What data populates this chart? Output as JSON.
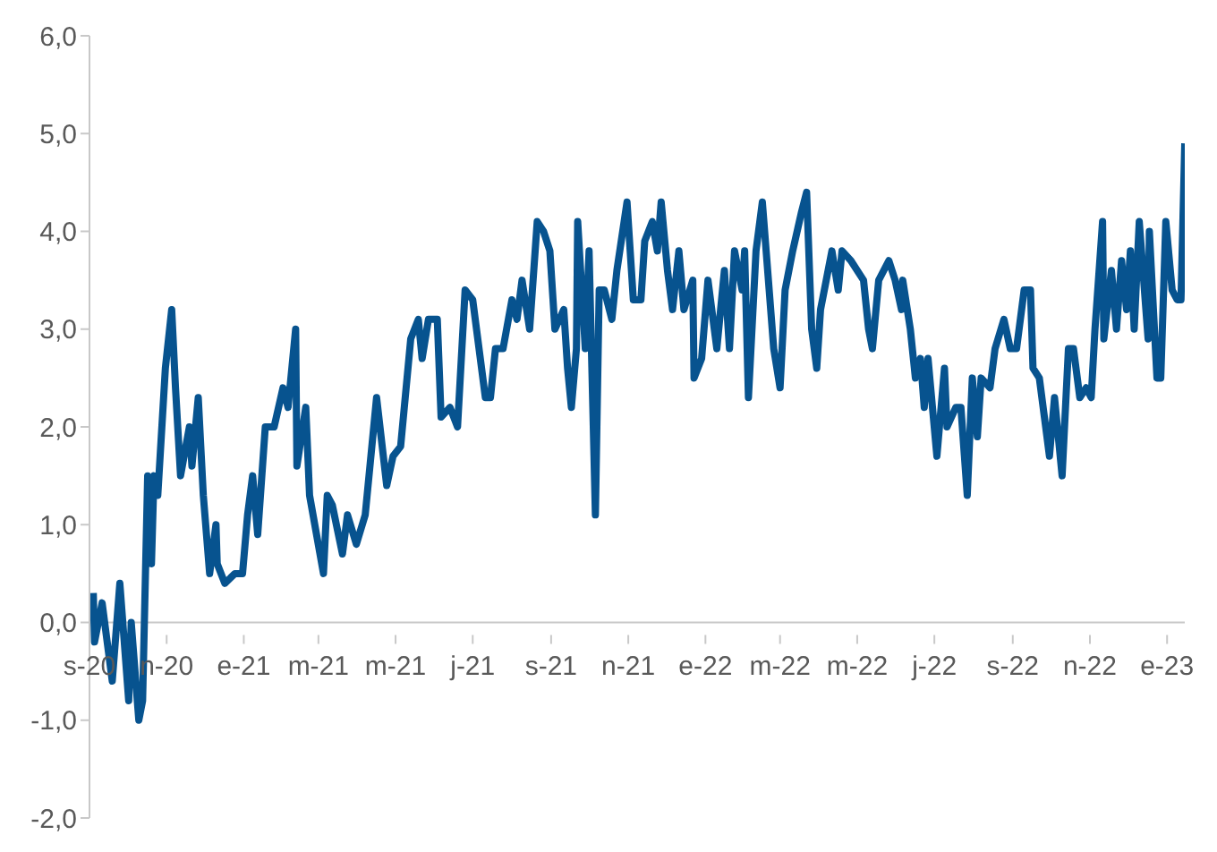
{
  "chart_data": {
    "type": "line",
    "marker": "none",
    "line_style": "solid",
    "xlim": [
      "2020-09-01",
      "2023-01-15"
    ],
    "xticks": [
      {
        "value": "2020-09-01",
        "label": "s-20"
      },
      {
        "value": "2020-11-01",
        "label": "n-20"
      },
      {
        "value": "2021-01-01",
        "label": "e-21"
      },
      {
        "value": "2021-03-01",
        "label": "m-21"
      },
      {
        "value": "2021-05-01",
        "label": "m-21"
      },
      {
        "value": "2021-07-01",
        "label": "j-21"
      },
      {
        "value": "2021-09-01",
        "label": "s-21"
      },
      {
        "value": "2021-11-01",
        "label": "n-21"
      },
      {
        "value": "2022-01-01",
        "label": "e-22"
      },
      {
        "value": "2022-03-01",
        "label": "m-22"
      },
      {
        "value": "2022-05-01",
        "label": "m-22"
      },
      {
        "value": "2022-07-01",
        "label": "j-22"
      },
      {
        "value": "2022-09-01",
        "label": "s-22"
      },
      {
        "value": "2022-11-01",
        "label": "n-22"
      },
      {
        "value": "2023-01-01",
        "label": "e-23"
      }
    ],
    "ylim": [
      -2,
      6
    ],
    "yticks": [
      {
        "value": -2,
        "label": "-2,0"
      },
      {
        "value": -1,
        "label": "-1,0"
      },
      {
        "value": 0,
        "label": "0,0"
      },
      {
        "value": 1,
        "label": "1,0"
      },
      {
        "value": 2,
        "label": "2,0"
      },
      {
        "value": 3,
        "label": "3,0"
      },
      {
        "value": 4,
        "label": "4,0"
      },
      {
        "value": 5,
        "label": "5,0"
      },
      {
        "value": 6,
        "label": "6,0"
      }
    ],
    "x": [
      "2020-09-04",
      "2020-09-05",
      "2020-09-11",
      "2020-09-19",
      "2020-09-25",
      "2020-10-02",
      "2020-10-04",
      "2020-10-10",
      "2020-10-13",
      "2020-10-17",
      "2020-10-20",
      "2020-10-22",
      "2020-10-25",
      "2020-10-31",
      "2020-11-05",
      "2020-11-08",
      "2020-11-12",
      "2020-11-19",
      "2020-11-21",
      "2020-11-26",
      "2020-11-30",
      "2020-12-05",
      "2020-12-10",
      "2020-12-11",
      "2020-12-17",
      "2020-12-25",
      "2020-12-31",
      "2021-01-04",
      "2021-01-08",
      "2021-01-12",
      "2021-01-18",
      "2021-01-25",
      "2021-02-01",
      "2021-02-05",
      "2021-02-11",
      "2021-02-12",
      "2021-02-19",
      "2021-02-22",
      "2021-03-05",
      "2021-03-08",
      "2021-03-12",
      "2021-03-20",
      "2021-03-24",
      "2021-03-31",
      "2021-04-07",
      "2021-04-16",
      "2021-04-24",
      "2021-04-29",
      "2021-05-05",
      "2021-05-13",
      "2021-05-19",
      "2021-05-22",
      "2021-05-27",
      "2021-06-03",
      "2021-06-06",
      "2021-06-13",
      "2021-06-19",
      "2021-06-25",
      "2021-07-01",
      "2021-07-11",
      "2021-07-15",
      "2021-07-19",
      "2021-07-25",
      "2021-08-01",
      "2021-08-05",
      "2021-08-09",
      "2021-08-15",
      "2021-08-21",
      "2021-08-26",
      "2021-08-31",
      "2021-09-04",
      "2021-09-11",
      "2021-09-14",
      "2021-09-17",
      "2021-09-21",
      "2021-09-22",
      "2021-09-28",
      "2021-10-01",
      "2021-10-06",
      "2021-10-09",
      "2021-10-13",
      "2021-10-19",
      "2021-10-23",
      "2021-10-31",
      "2021-11-05",
      "2021-11-11",
      "2021-11-14",
      "2021-11-20",
      "2021-11-24",
      "2021-11-27",
      "2021-12-02",
      "2021-12-06",
      "2021-12-11",
      "2021-12-15",
      "2021-12-22",
      "2021-12-23",
      "2021-12-29",
      "2022-01-03",
      "2022-01-10",
      "2022-01-16",
      "2022-01-20",
      "2022-01-24",
      "2022-01-30",
      "2022-02-01",
      "2022-02-04",
      "2022-02-10",
      "2022-02-15",
      "2022-02-18",
      "2022-02-24",
      "2022-03-01",
      "2022-03-05",
      "2022-03-11",
      "2022-03-18",
      "2022-03-22",
      "2022-03-26",
      "2022-03-30",
      "2022-04-02",
      "2022-04-11",
      "2022-04-16",
      "2022-04-19",
      "2022-04-26",
      "2022-05-06",
      "2022-05-10",
      "2022-05-13",
      "2022-05-18",
      "2022-05-26",
      "2022-05-31",
      "2022-06-05",
      "2022-06-06",
      "2022-06-12",
      "2022-06-16",
      "2022-06-20",
      "2022-06-23",
      "2022-06-26",
      "2022-07-03",
      "2022-07-09",
      "2022-07-11",
      "2022-07-18",
      "2022-07-22",
      "2022-07-27",
      "2022-07-31",
      "2022-08-04",
      "2022-08-07",
      "2022-08-14",
      "2022-08-18",
      "2022-08-25",
      "2022-08-30",
      "2022-09-04",
      "2022-09-10",
      "2022-09-15",
      "2022-09-17",
      "2022-09-22",
      "2022-09-26",
      "2022-09-30",
      "2022-10-04",
      "2022-10-10",
      "2022-10-15",
      "2022-10-19",
      "2022-10-24",
      "2022-10-29",
      "2022-11-02",
      "2022-11-05",
      "2022-11-11",
      "2022-11-12",
      "2022-11-18",
      "2022-11-22",
      "2022-11-26",
      "2022-11-30",
      "2022-12-03",
      "2022-12-06",
      "2022-12-10",
      "2022-12-17",
      "2022-12-18",
      "2022-12-24",
      "2022-12-27",
      "2022-12-31",
      "2023-01-05",
      "2023-01-09",
      "2023-01-12",
      "2023-01-15"
    ],
    "series": [
      {
        "color": "#07538f",
        "values": [
          0.3,
          -0.2,
          0.2,
          -0.6,
          0.4,
          -0.8,
          0.0,
          -1.0,
          -0.8,
          1.5,
          0.6,
          1.5,
          1.3,
          2.6,
          3.2,
          2.4,
          1.5,
          2.0,
          1.6,
          2.3,
          1.3,
          0.5,
          1.0,
          0.6,
          0.4,
          0.5,
          0.5,
          1.1,
          1.5,
          0.9,
          2.0,
          2.0,
          2.4,
          2.2,
          3.0,
          1.6,
          2.2,
          1.3,
          0.5,
          1.3,
          1.2,
          0.7,
          1.1,
          0.8,
          1.1,
          2.3,
          1.4,
          1.7,
          1.8,
          2.9,
          3.1,
          2.7,
          3.1,
          3.1,
          2.1,
          2.2,
          2.0,
          3.4,
          3.3,
          2.3,
          2.3,
          2.8,
          2.8,
          3.3,
          3.1,
          3.5,
          3.0,
          4.1,
          4.0,
          3.8,
          3.0,
          3.2,
          2.6,
          2.2,
          2.8,
          4.1,
          2.8,
          3.8,
          1.1,
          3.4,
          3.4,
          3.1,
          3.6,
          4.3,
          3.3,
          3.3,
          3.9,
          4.1,
          3.8,
          4.3,
          3.6,
          3.2,
          3.8,
          3.2,
          3.5,
          2.5,
          2.7,
          3.5,
          2.8,
          3.6,
          2.8,
          3.8,
          3.4,
          3.8,
          2.3,
          3.8,
          4.3,
          3.8,
          2.8,
          2.4,
          3.4,
          3.8,
          4.2,
          4.4,
          3.0,
          2.6,
          3.2,
          3.8,
          3.4,
          3.8,
          3.7,
          3.5,
          3.0,
          2.8,
          3.5,
          3.7,
          3.5,
          3.2,
          3.5,
          3.0,
          2.5,
          2.7,
          2.2,
          2.7,
          1.7,
          2.6,
          2.0,
          2.2,
          2.2,
          1.3,
          2.5,
          1.9,
          2.5,
          2.4,
          2.8,
          3.1,
          2.8,
          2.8,
          3.4,
          3.4,
          2.6,
          2.5,
          2.1,
          1.7,
          2.3,
          1.5,
          2.8,
          2.8,
          2.3,
          2.4,
          2.3,
          3.0,
          4.1,
          2.9,
          3.6,
          3.0,
          3.7,
          3.2,
          3.8,
          3.0,
          4.1,
          2.9,
          4.0,
          2.5,
          2.5,
          4.1,
          3.4,
          3.3,
          3.3,
          4.9
        ]
      }
    ]
  }
}
